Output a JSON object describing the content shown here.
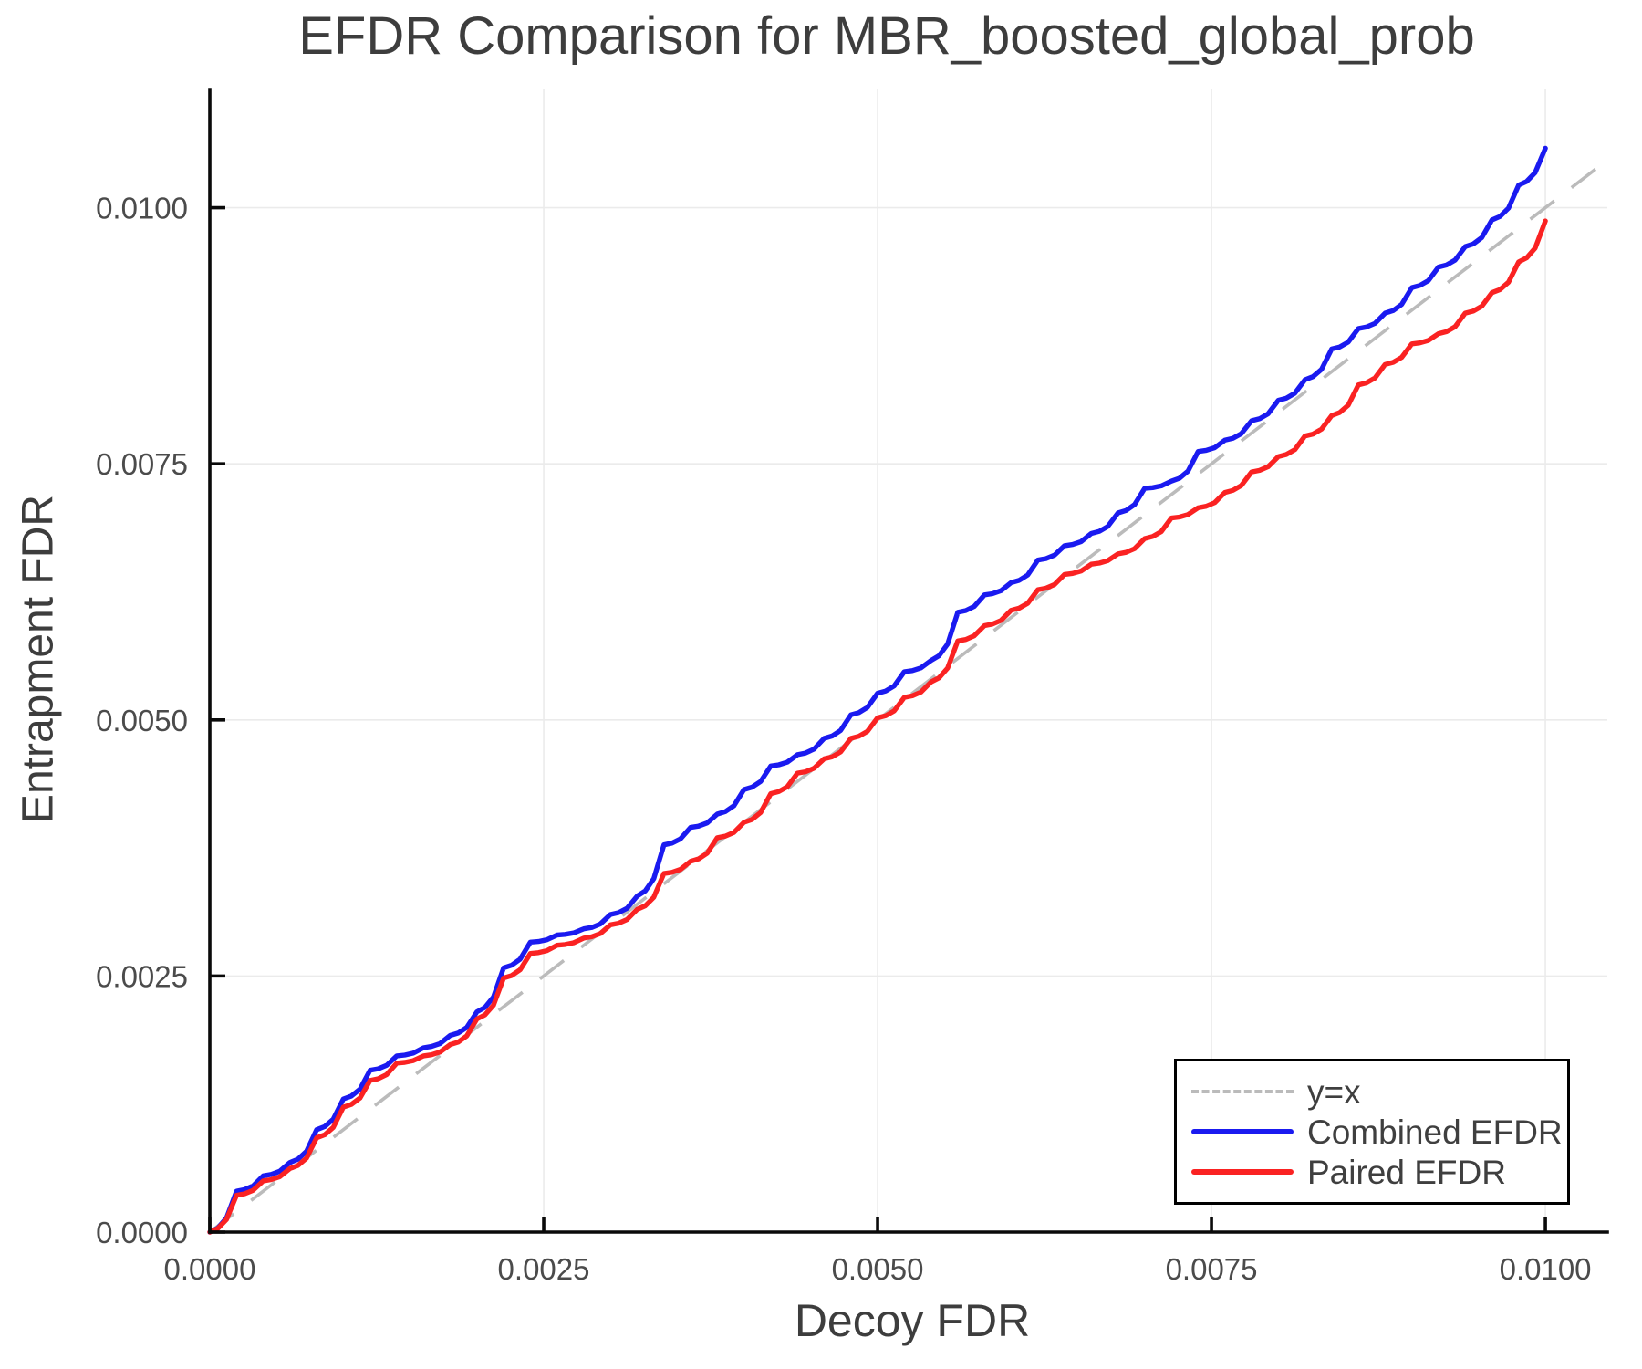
{
  "chart_data": {
    "type": "line",
    "title": "EFDR Comparison for MBR_boosted_global_prob",
    "xlabel": "Decoy FDR",
    "ylabel": "Entrapment FDR",
    "xlim": [
      0,
      0.010464
    ],
    "ylim": [
      0,
      0.011154
    ],
    "grid": true,
    "legend_position": "lower right",
    "xticks": {
      "values": [
        0,
        0.0025,
        0.005,
        0.0075,
        0.01
      ],
      "labels": [
        "0.0000",
        "0.0025",
        "0.0050",
        "0.0075",
        "0.0100"
      ]
    },
    "yticks": {
      "values": [
        0,
        0.0025,
        0.005,
        0.0075,
        0.01
      ],
      "labels": [
        "0.0000",
        "0.0025",
        "0.0050",
        "0.0075",
        "0.0100"
      ]
    },
    "colors": {
      "identity_line": "#bbbbbb",
      "combined_efdr": "#1a1af0",
      "paired_efdr": "#fa2222",
      "grid": "#ebebeb",
      "spine": "#0a0a0a",
      "title_text": "#3d3d3d",
      "tick_text": "#4b4b4b"
    },
    "series": [
      {
        "name": "y=x",
        "style": "dashed",
        "color": "#bbbbbb",
        "x": [
          0,
          0.010464
        ],
        "y": [
          0,
          0.010464
        ]
      },
      {
        "name": "Combined EFDR",
        "style": "solid",
        "color": "#1a1af0",
        "x": [
          0,
          0.0002,
          0.0004,
          0.0006,
          0.0008,
          0.001,
          0.0012,
          0.0014,
          0.0016,
          0.0018,
          0.002,
          0.0022,
          0.0024,
          0.0026,
          0.0028,
          0.003,
          0.0032,
          0.0034,
          0.0036,
          0.0038,
          0.004,
          0.0042,
          0.0044,
          0.0046,
          0.0048,
          0.005,
          0.0052,
          0.0054,
          0.0056,
          0.0058,
          0.006,
          0.0062,
          0.0064,
          0.0066,
          0.0068,
          0.007,
          0.0072,
          0.0074,
          0.0076,
          0.0078,
          0.008,
          0.0082,
          0.0084,
          0.0086,
          0.0088,
          0.009,
          0.0092,
          0.0094,
          0.0096,
          0.0098,
          0.01
        ],
        "y": [
          0,
          0.0004,
          0.00055,
          0.00068,
          0.001,
          0.0013,
          0.00158,
          0.00172,
          0.0018,
          0.00192,
          0.00215,
          0.00258,
          0.00283,
          0.0029,
          0.00296,
          0.0031,
          0.00328,
          0.00378,
          0.00395,
          0.00408,
          0.00432,
          0.00455,
          0.00466,
          0.00482,
          0.00505,
          0.00526,
          0.00547,
          0.00558,
          0.00605,
          0.00622,
          0.00634,
          0.00656,
          0.0067,
          0.00682,
          0.00702,
          0.00726,
          0.00733,
          0.00762,
          0.00773,
          0.00792,
          0.00812,
          0.00832,
          0.00862,
          0.00882,
          0.00897,
          0.00922,
          0.00942,
          0.00962,
          0.00988,
          0.01022,
          0.01058
        ]
      },
      {
        "name": "Paired EFDR",
        "style": "solid",
        "color": "#fa2222",
        "x": [
          0,
          0.0002,
          0.0004,
          0.0006,
          0.0008,
          0.001,
          0.0012,
          0.0014,
          0.0016,
          0.0018,
          0.002,
          0.0022,
          0.0024,
          0.0026,
          0.0028,
          0.003,
          0.0032,
          0.0034,
          0.0036,
          0.0038,
          0.004,
          0.0042,
          0.0044,
          0.0046,
          0.0048,
          0.005,
          0.0052,
          0.0054,
          0.0056,
          0.0058,
          0.006,
          0.0062,
          0.0064,
          0.0066,
          0.0068,
          0.007,
          0.0072,
          0.0074,
          0.0076,
          0.0078,
          0.008,
          0.0082,
          0.0084,
          0.0086,
          0.0088,
          0.009,
          0.0092,
          0.0094,
          0.0096,
          0.0098,
          0.01
        ],
        "y": [
          0,
          0.00036,
          0.0005,
          0.00062,
          0.00092,
          0.00122,
          0.00148,
          0.00165,
          0.00172,
          0.00183,
          0.00208,
          0.00248,
          0.00272,
          0.0028,
          0.00287,
          0.003,
          0.00315,
          0.0035,
          0.00362,
          0.00385,
          0.004,
          0.00428,
          0.00448,
          0.00462,
          0.00482,
          0.00502,
          0.00522,
          0.00537,
          0.00577,
          0.00592,
          0.00607,
          0.00627,
          0.00642,
          0.00652,
          0.00662,
          0.00677,
          0.00697,
          0.00707,
          0.00722,
          0.00742,
          0.00757,
          0.00777,
          0.00797,
          0.00827,
          0.00847,
          0.00867,
          0.00877,
          0.00897,
          0.00917,
          0.00947,
          0.00987
        ]
      }
    ]
  }
}
